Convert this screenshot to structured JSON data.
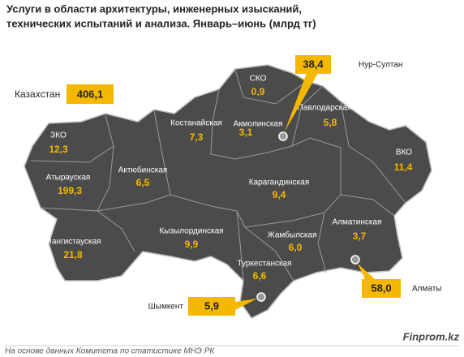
{
  "title": [
    "Услуги в области архитектуры, инженерных изысканий,",
    "технических испытаний и анализа. Январь–июнь (млрд тг)"
  ],
  "total": {
    "label": "Казахстан",
    "value": "406,1"
  },
  "regions": [
    {
      "name": "СКО",
      "value": "0,9"
    },
    {
      "name": "Костанайская",
      "value": "7,3"
    },
    {
      "name": "Акмолинская",
      "value": "3,1"
    },
    {
      "name": "Павлодарская",
      "value": "5,8"
    },
    {
      "name": "ВКО",
      "value": "11,4"
    },
    {
      "name": "ЗКО",
      "value": "12,3"
    },
    {
      "name": "Атырауская",
      "value": "199,3"
    },
    {
      "name": "Актюбинская",
      "value": "6,5"
    },
    {
      "name": "Карагандинская",
      "value": "9,4"
    },
    {
      "name": "Мангистауская",
      "value": "21,8"
    },
    {
      "name": "Кызылординская",
      "value": "9,9"
    },
    {
      "name": "Жамбылская",
      "value": "6,0"
    },
    {
      "name": "Алматинская",
      "value": "3,7"
    },
    {
      "name": "Туркестанская",
      "value": "6,6"
    }
  ],
  "cities": [
    {
      "name": "Нур-Султан",
      "value": "38,4"
    },
    {
      "name": "Алматы",
      "value": "58,0"
    },
    {
      "name": "Шымкент",
      "value": "5,9"
    }
  ],
  "source": "На основе данных Комитета по статистике МНЭ РК",
  "brand": "Finprom.kz"
}
